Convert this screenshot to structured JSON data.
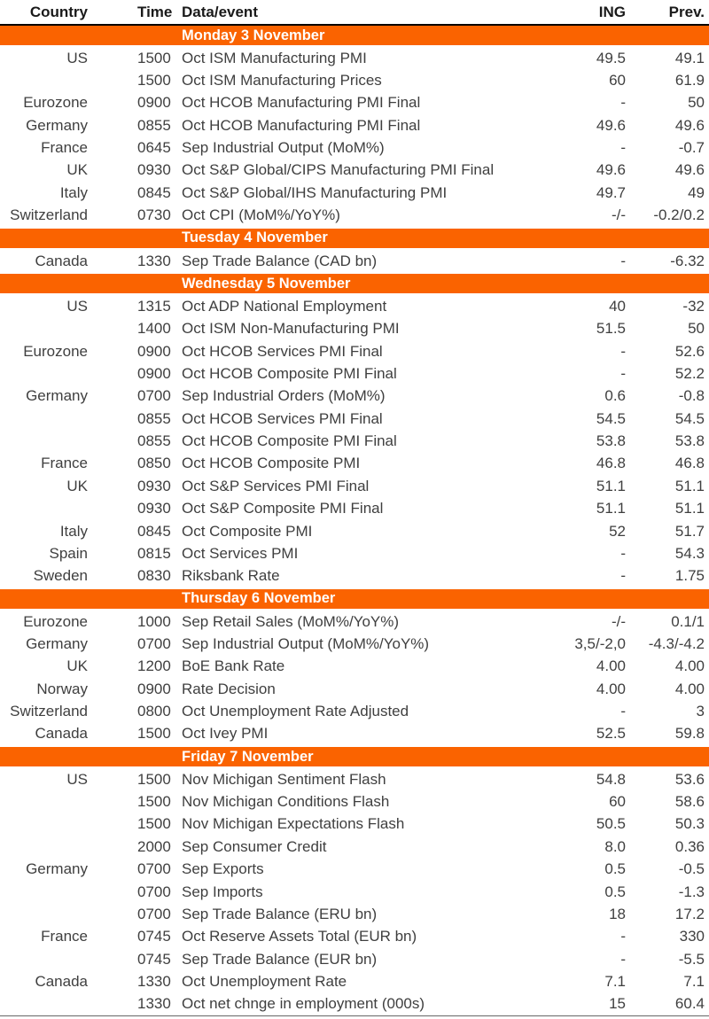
{
  "colors": {
    "accent_orange": "#fa6300",
    "header_rule": "#000000",
    "body_text": "#3f3f3f",
    "band_text": "#ffffff"
  },
  "table": {
    "columns": {
      "country": "Country",
      "time": "Time",
      "event": "Data/event",
      "ing": "ING",
      "prev": "Prev."
    },
    "sections": [
      {
        "label": "Monday 3 November",
        "rows": [
          {
            "country": "US",
            "time": "1500",
            "event": "Oct ISM Manufacturing PMI",
            "ing": "49.5",
            "prev": "49.1"
          },
          {
            "country": "",
            "time": "1500",
            "event": "Oct ISM Manufacturing Prices",
            "ing": "60",
            "prev": "61.9"
          },
          {
            "country": "Eurozone",
            "time": "0900",
            "event": "Oct HCOB Manufacturing PMI Final",
            "ing": "-",
            "prev": "50"
          },
          {
            "country": "Germany",
            "time": "0855",
            "event": "Oct HCOB Manufacturing PMI Final",
            "ing": "49.6",
            "prev": "49.6"
          },
          {
            "country": "France",
            "time": "0645",
            "event": "Sep Industrial Output (MoM%)",
            "ing": "-",
            "prev": "-0.7"
          },
          {
            "country": "UK",
            "time": "0930",
            "event": "Oct S&P Global/CIPS Manufacturing PMI Final",
            "ing": "49.6",
            "prev": "49.6"
          },
          {
            "country": "Italy",
            "time": "0845",
            "event": "Oct S&P Global/IHS Manufacturing PMI",
            "ing": "49.7",
            "prev": "49"
          },
          {
            "country": "Switzerland",
            "time": "0730",
            "event": "Oct CPI (MoM%/YoY%)",
            "ing": "-/-",
            "prev": "-0.2/0.2"
          }
        ]
      },
      {
        "label": "Tuesday 4 November",
        "rows": [
          {
            "country": "Canada",
            "time": "1330",
            "event": "Sep Trade Balance (CAD bn)",
            "ing": "-",
            "prev": "-6.32"
          }
        ]
      },
      {
        "label": "Wednesday 5 November",
        "rows": [
          {
            "country": "US",
            "time": "1315",
            "event": "Oct ADP National Employment",
            "ing": "40",
            "prev": "-32"
          },
          {
            "country": "",
            "time": "1400",
            "event": "Oct ISM Non-Manufacturing PMI",
            "ing": "51.5",
            "prev": "50"
          },
          {
            "country": "Eurozone",
            "time": "0900",
            "event": "Oct HCOB Services PMI Final",
            "ing": "-",
            "prev": "52.6"
          },
          {
            "country": "",
            "time": "0900",
            "event": "Oct HCOB Composite PMI Final",
            "ing": "-",
            "prev": "52.2"
          },
          {
            "country": "Germany",
            "time": "0700",
            "event": "Sep Industrial Orders (MoM%)",
            "ing": "0.6",
            "prev": "-0.8"
          },
          {
            "country": "",
            "time": "0855",
            "event": "Oct HCOB Services PMI Final",
            "ing": "54.5",
            "prev": "54.5"
          },
          {
            "country": "",
            "time": "0855",
            "event": "Oct HCOB Composite PMI Final",
            "ing": "53.8",
            "prev": "53.8"
          },
          {
            "country": "France",
            "time": "0850",
            "event": "Oct HCOB Composite PMI",
            "ing": "46.8",
            "prev": "46.8"
          },
          {
            "country": "UK",
            "time": "0930",
            "event": "Oct S&P Services PMI Final",
            "ing": "51.1",
            "prev": "51.1"
          },
          {
            "country": "",
            "time": "0930",
            "event": "Oct S&P Composite PMI Final",
            "ing": "51.1",
            "prev": "51.1"
          },
          {
            "country": "Italy",
            "time": "0845",
            "event": "Oct Composite PMI",
            "ing": "52",
            "prev": "51.7"
          },
          {
            "country": "Spain",
            "time": "0815",
            "event": "Oct Services PMI",
            "ing": "-",
            "prev": "54.3"
          },
          {
            "country": "Sweden",
            "time": "0830",
            "event": "Riksbank Rate",
            "ing": "-",
            "prev": "1.75"
          }
        ]
      },
      {
        "label": "Thursday 6 November",
        "rows": [
          {
            "country": "Eurozone",
            "time": "1000",
            "event": "Sep Retail Sales (MoM%/YoY%)",
            "ing": "-/-",
            "prev": "0.1/1"
          },
          {
            "country": "Germany",
            "time": "0700",
            "event": "Sep Industrial Output (MoM%/YoY%)",
            "ing": "3,5/-2,0",
            "prev": "-4.3/-4.2"
          },
          {
            "country": "UK",
            "time": "1200",
            "event": "BoE Bank Rate",
            "ing": "4.00",
            "prev": "4.00"
          },
          {
            "country": "Norway",
            "time": "0900",
            "event": "Rate Decision",
            "ing": "4.00",
            "prev": "4.00"
          },
          {
            "country": "Switzerland",
            "time": "0800",
            "event": "Oct Unemployment Rate Adjusted",
            "ing": "-",
            "prev": "3"
          },
          {
            "country": "Canada",
            "time": "1500",
            "event": "Oct Ivey PMI",
            "ing": "52.5",
            "prev": "59.8"
          }
        ]
      },
      {
        "label": "Friday 7 November",
        "rows": [
          {
            "country": "US",
            "time": "1500",
            "event": "Nov Michigan Sentiment Flash",
            "ing": "54.8",
            "prev": "53.6"
          },
          {
            "country": "",
            "time": "1500",
            "event": "Nov Michigan Conditions Flash",
            "ing": "60",
            "prev": "58.6"
          },
          {
            "country": "",
            "time": "1500",
            "event": "Nov Michigan Expectations Flash",
            "ing": "50.5",
            "prev": "50.3"
          },
          {
            "country": "",
            "time": "2000",
            "event": "Sep Consumer Credit",
            "ing": "8.0",
            "prev": "0.36"
          },
          {
            "country": "Germany",
            "time": "0700",
            "event": "Sep Exports",
            "ing": "0.5",
            "prev": "-0.5"
          },
          {
            "country": "",
            "time": "0700",
            "event": "Sep Imports",
            "ing": "0.5",
            "prev": "-1.3"
          },
          {
            "country": "",
            "time": "0700",
            "event": "Sep Trade Balance (ERU bn)",
            "ing": "18",
            "prev": "17.2"
          },
          {
            "country": "France",
            "time": "0745",
            "event": "Oct Reserve Assets Total (EUR bn)",
            "ing": "-",
            "prev": "330"
          },
          {
            "country": "",
            "time": "0745",
            "event": "Sep Trade Balance (EUR bn)",
            "ing": "-",
            "prev": "-5.5"
          },
          {
            "country": "Canada",
            "time": "1330",
            "event": "Oct Unemployment Rate",
            "ing": "7.1",
            "prev": "7.1"
          },
          {
            "country": "",
            "time": "1330",
            "event": "Oct net chnge in employment (000s)",
            "ing": "15",
            "prev": "60.4"
          }
        ]
      }
    ]
  }
}
